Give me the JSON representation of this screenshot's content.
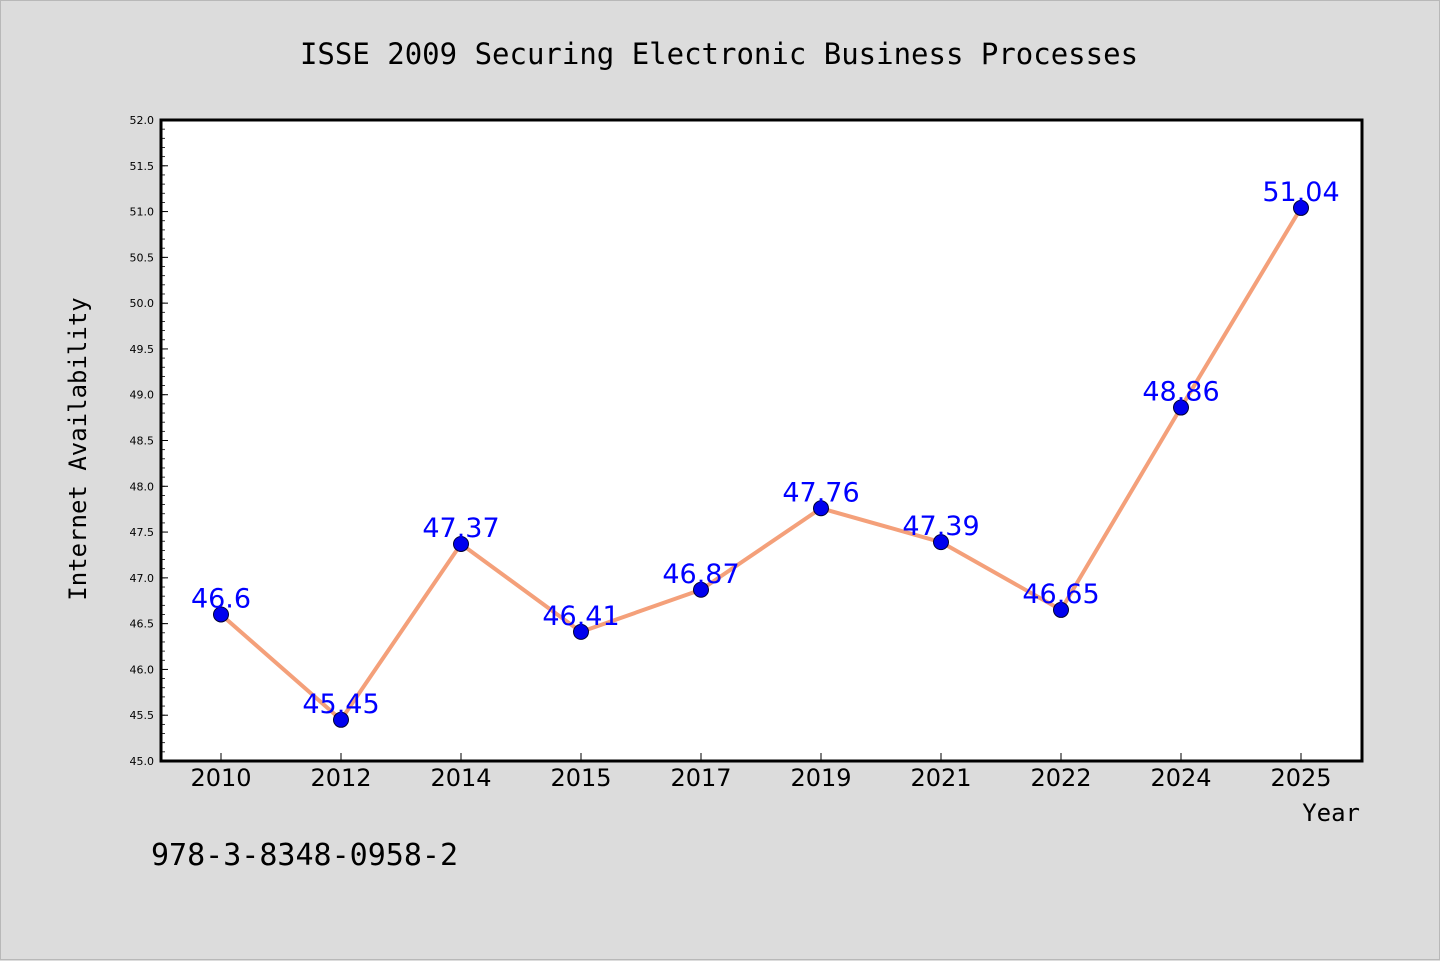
{
  "chart_data": {
    "type": "line",
    "title": "ISSE 2009 Securing Electronic Business Processes",
    "xlabel": "Year",
    "ylabel": "Internet Availability",
    "footer": "978-3-8348-0958-2",
    "categories": [
      "2010",
      "2012",
      "2014",
      "2015",
      "2017",
      "2019",
      "2021",
      "2022",
      "2024",
      "2025"
    ],
    "series": [
      {
        "values": [
          46.6,
          45.45,
          47.37,
          46.41,
          46.87,
          47.76,
          47.39,
          46.65,
          48.86,
          51.04
        ],
        "labels": [
          "46.6",
          "45.45",
          "47.37",
          "46.41",
          "46.87",
          "47.76",
          "47.39",
          "46.65",
          "48.86",
          "51.04"
        ],
        "line_color": "#f4a07a",
        "marker_color": "#0000ee",
        "label_color": "#0000ff"
      }
    ],
    "ylim": [
      45.0,
      52.0
    ],
    "yticks": [
      "45.0",
      "45.5",
      "46.0",
      "46.5",
      "47.0",
      "47.5",
      "48.0",
      "48.5",
      "49.0",
      "49.5",
      "50.0",
      "50.5",
      "51.0",
      "51.5",
      "52.0"
    ],
    "grid": false,
    "legend": "none",
    "background": "#dcdcdc",
    "plot_background": "#ffffff"
  }
}
